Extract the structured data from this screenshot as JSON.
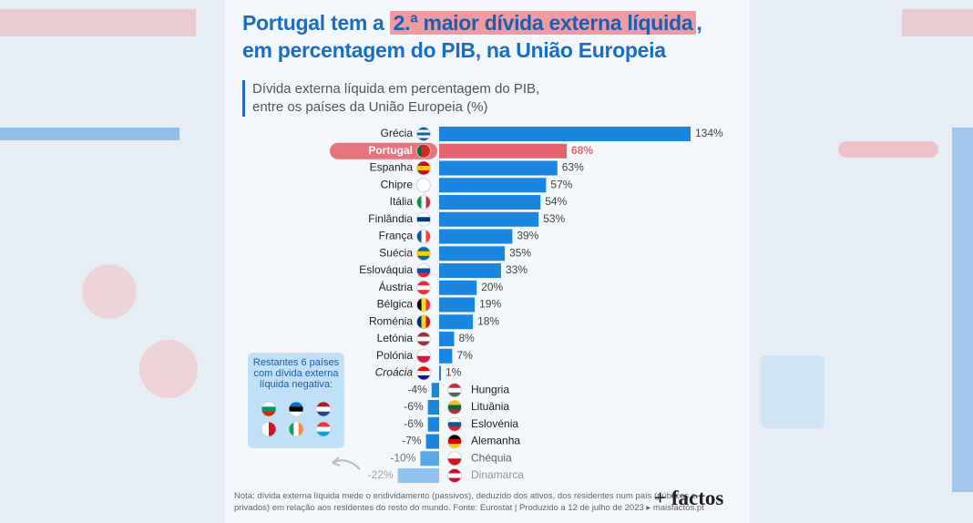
{
  "chart_data": {
    "type": "bar",
    "orientation": "horizontal",
    "title": {
      "before": "Portugal tem a",
      "highlight": "2.ª maior dívida externa líquida",
      "after": ",",
      "line2": "em percentagem do PIB, na União Europeia"
    },
    "subtitle": [
      "Dívida externa líquida em percentagem do PIB,",
      "entre os países da União Europeia (%)"
    ],
    "categories": [
      "Grécia",
      "Portugal",
      "Espanha",
      "Chipre",
      "Itália",
      "Finlândia",
      "França",
      "Suécia",
      "Eslováquia",
      "Áustria",
      "Bélgica",
      "Roménia",
      "Letónia",
      "Polónia",
      "Croácia",
      "Hungria",
      "Lituânia",
      "Eslovénia",
      "Alemanha",
      "Chéquia",
      "Dinamarca"
    ],
    "values": [
      134,
      68,
      63,
      57,
      54,
      53,
      39,
      35,
      33,
      20,
      19,
      18,
      8,
      7,
      1,
      -4,
      -6,
      -6,
      -7,
      -10,
      -22
    ],
    "value_labels": [
      "134%",
      "68%",
      "63%",
      "57%",
      "54%",
      "53%",
      "39%",
      "35%",
      "33%",
      "20%",
      "19%",
      "18%",
      "8%",
      "7%",
      "1%",
      "-4%",
      "-6%",
      "-6%",
      "-7%",
      "-10%",
      "-22%"
    ],
    "colors": [
      "#1a86e0",
      "#e4646f",
      "#1a86e0",
      "#1a86e0",
      "#1a86e0",
      "#1a86e0",
      "#1a86e0",
      "#1a86e0",
      "#1a86e0",
      "#1a86e0",
      "#1a86e0",
      "#1a86e0",
      "#1a86e0",
      "#1a86e0",
      "#1a86e0",
      "#1a86e0",
      "#1a86e0",
      "#1a86e0",
      "#1a86e0",
      "#1a86e0",
      "#1a86e0"
    ],
    "note": [
      "Restantes 6 países",
      "com dívida externa",
      "líquida negativa:"
    ],
    "footnote": [
      "Nota: dívida externa líquida mede o endividamento (passivos), deduzido dos ativos, dos residentes num país (públicos e",
      "privados) em relação aos residentes do resto do mundo. Fonte: Eurostat | Produzido a 12 de julho de 2023 ▸ maisfactos.pt"
    ],
    "logo": "+ factos"
  }
}
